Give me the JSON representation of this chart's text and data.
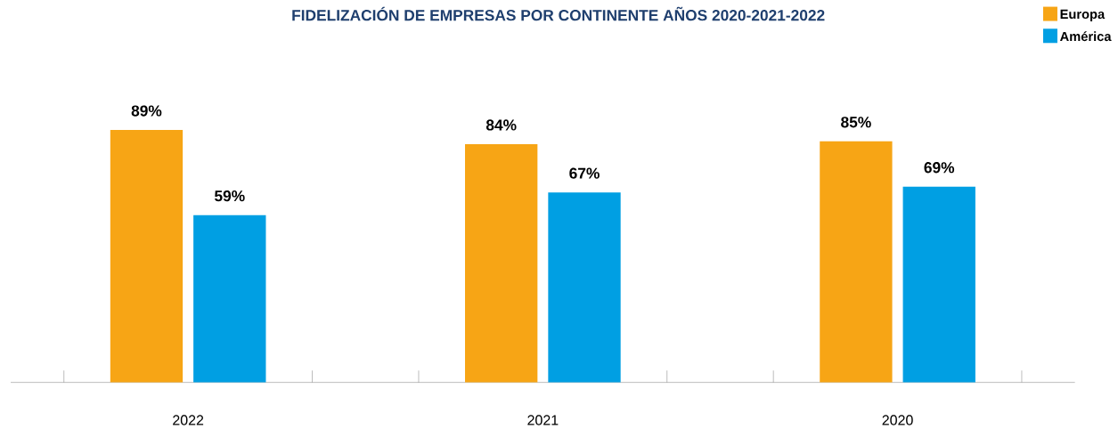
{
  "chart_data": {
    "type": "bar",
    "title": "FIDELIZACIÓN DE EMPRESAS POR CONTINENTE AÑOS 2020-2021-2022",
    "categories": [
      "2022",
      "2021",
      "2020"
    ],
    "series": [
      {
        "name": "Europa",
        "color": "#f7a515",
        "values": [
          89,
          84,
          85
        ],
        "value_labels": [
          "89%",
          "84%",
          "85%"
        ]
      },
      {
        "name": "América",
        "color": "#009fe3",
        "values": [
          59,
          67,
          69
        ],
        "value_labels": [
          "59%",
          "67%",
          "69%"
        ]
      }
    ],
    "legend": "top right"
  }
}
